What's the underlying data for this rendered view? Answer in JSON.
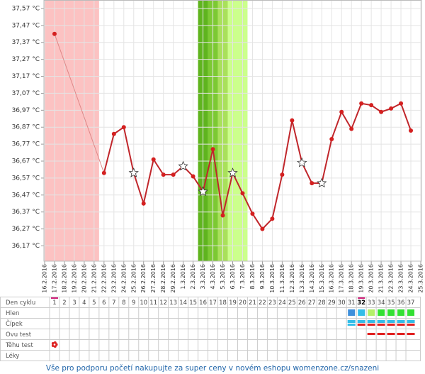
{
  "chart_data": {
    "type": "line",
    "categories": [
      "16.2.2016",
      "17.2.2016",
      "18.2.2016",
      "19.2.2016",
      "20.2.2016",
      "21.2.2016",
      "22.2.2016",
      "23.2.2016",
      "24.2.2016",
      "25.2.2016",
      "26.2.2016",
      "27.2.2016",
      "28.2.2016",
      "29.2.2016",
      "1.3.2016",
      "2.3.2016",
      "3.3.2016",
      "4.3.2016",
      "5.3.2016",
      "6.3.2016",
      "7.3.2016",
      "8.3.2016",
      "9.3.2016",
      "10.3.2016",
      "11.3.2016",
      "12.3.2016",
      "13.3.2016",
      "14.3.2016",
      "15.3.2016",
      "16.3.2016",
      "17.3.2016",
      "18.3.2016",
      "19.3.2016",
      "20.3.2016",
      "21.3.2016",
      "22.3.2016",
      "23.3.2016",
      "24.3.2016",
      "25.3.2016"
    ],
    "series": [
      {
        "color": "#c0262b",
        "values": [
          null,
          37.42,
          null,
          null,
          null,
          null,
          36.6,
          36.83,
          36.87,
          36.6,
          36.42,
          36.68,
          36.59,
          36.59,
          36.64,
          36.58,
          36.49,
          36.74,
          36.35,
          36.6,
          36.48,
          36.36,
          36.27,
          36.33,
          36.59,
          36.91,
          36.66,
          36.54,
          36.54,
          36.8,
          36.96,
          36.86,
          37.01,
          37.0,
          36.96,
          36.98,
          37.01,
          36.85,
          null
        ],
        "markers": [
          null,
          "dot",
          null,
          null,
          null,
          null,
          "dot",
          "dot",
          "dot",
          "star",
          "dot",
          "dot",
          "dot",
          "dot",
          "star",
          "dot",
          "star",
          "dot",
          "dot",
          "star",
          "dot",
          "dot",
          "dot",
          "dot",
          "dot",
          "dot",
          "star",
          "dot",
          "star",
          "dot",
          "dot",
          "dot",
          "dot",
          "dot",
          "dot",
          "dot",
          "dot",
          "dot",
          null
        ]
      }
    ],
    "ylim": [
      36.08,
      37.62
    ],
    "yticks": [
      {
        "value": 37.57,
        "label": "37,57 °C"
      },
      {
        "value": 37.47,
        "label": "37,47 °C"
      },
      {
        "value": 37.37,
        "label": "37,37 °C"
      },
      {
        "value": 37.27,
        "label": "37,27 °C"
      },
      {
        "value": 37.17,
        "label": "37,17 °C"
      },
      {
        "value": 37.07,
        "label": "37,07 °C"
      },
      {
        "value": 36.97,
        "label": "36,97 °C"
      },
      {
        "value": 36.87,
        "label": "36,87 °C"
      },
      {
        "value": 36.77,
        "label": "36,77 °C"
      },
      {
        "value": 36.67,
        "label": "36,67 °C"
      },
      {
        "value": 36.57,
        "label": "36,57 °C"
      },
      {
        "value": 36.47,
        "label": "36,47 °C"
      },
      {
        "value": 36.37,
        "label": "36,37 °C"
      },
      {
        "value": 36.27,
        "label": "36,27 °C"
      },
      {
        "value": 36.17,
        "label": "36,17 °C"
      }
    ],
    "grid": true,
    "bands": [
      {
        "from": "16.2.2016",
        "to": "21.2.2016",
        "color": "#fcc2c2"
      },
      {
        "from": "3.3.2016",
        "to": "3.3.2016",
        "color": "#5fb41e"
      },
      {
        "from": "4.3.2016",
        "to": "4.3.2016",
        "color": "#7cc933"
      },
      {
        "from": "5.3.2016",
        "to": "5.3.2016",
        "color": "#a9e05b"
      },
      {
        "from": "6.3.2016",
        "to": "7.3.2016",
        "color": "#ccff8c"
      }
    ]
  },
  "table": {
    "row_labels": [
      "Den cyklu",
      "Hlen",
      "Čípek",
      "Ovu test",
      "Těhu test",
      "Léky"
    ],
    "days": [
      1,
      2,
      3,
      4,
      5,
      6,
      7,
      8,
      9,
      10,
      11,
      12,
      13,
      14,
      15,
      16,
      17,
      18,
      19,
      20,
      21,
      22,
      23,
      24,
      25,
      26,
      27,
      28,
      29,
      30,
      31,
      32,
      33,
      34,
      35,
      36,
      37
    ],
    "marked_days": [
      1,
      32
    ],
    "bold_days": [
      32
    ],
    "hlen": [
      {
        "day": 31,
        "color": "#3d8fdb"
      },
      {
        "day": 32,
        "color": "#33bde8"
      },
      {
        "day": 33,
        "color": "#b4f06a"
      },
      {
        "day": 34,
        "color": "#33e033"
      },
      {
        "day": 35,
        "color": "#33e033"
      },
      {
        "day": 36,
        "color": "#33e033"
      },
      {
        "day": 37,
        "color": "#33e033"
      }
    ],
    "cipek": [
      {
        "day": 31,
        "top": "#33bde8",
        "bottom": "#33bde8"
      },
      {
        "day": 32,
        "top": "#33bde8",
        "bottom": "#e02020"
      },
      {
        "day": 33,
        "top": "#33bde8",
        "bottom": "#e02020"
      },
      {
        "day": 34,
        "top": "#33bde8",
        "bottom": "#e02020"
      },
      {
        "day": 35,
        "top": "#33bde8",
        "bottom": "#e02020"
      },
      {
        "day": 36,
        "top": "#33bde8",
        "bottom": "#e02020"
      },
      {
        "day": 37,
        "top": "#33bde8",
        "bottom": "#e02020"
      }
    ],
    "ovu": [
      {
        "day": 33,
        "color": "#e02020"
      },
      {
        "day": 34,
        "color": "#e02020"
      },
      {
        "day": 35,
        "color": "#e02020"
      },
      {
        "day": 36,
        "color": "#e02020"
      },
      {
        "day": 37,
        "color": "#e02020"
      }
    ],
    "tehu": [
      {
        "day": 1,
        "color": "#dd2222"
      }
    ]
  },
  "footer": "Vše pro podporu početí nakupujte za super ceny v novém eshopu womenzone.cz/snazeni"
}
